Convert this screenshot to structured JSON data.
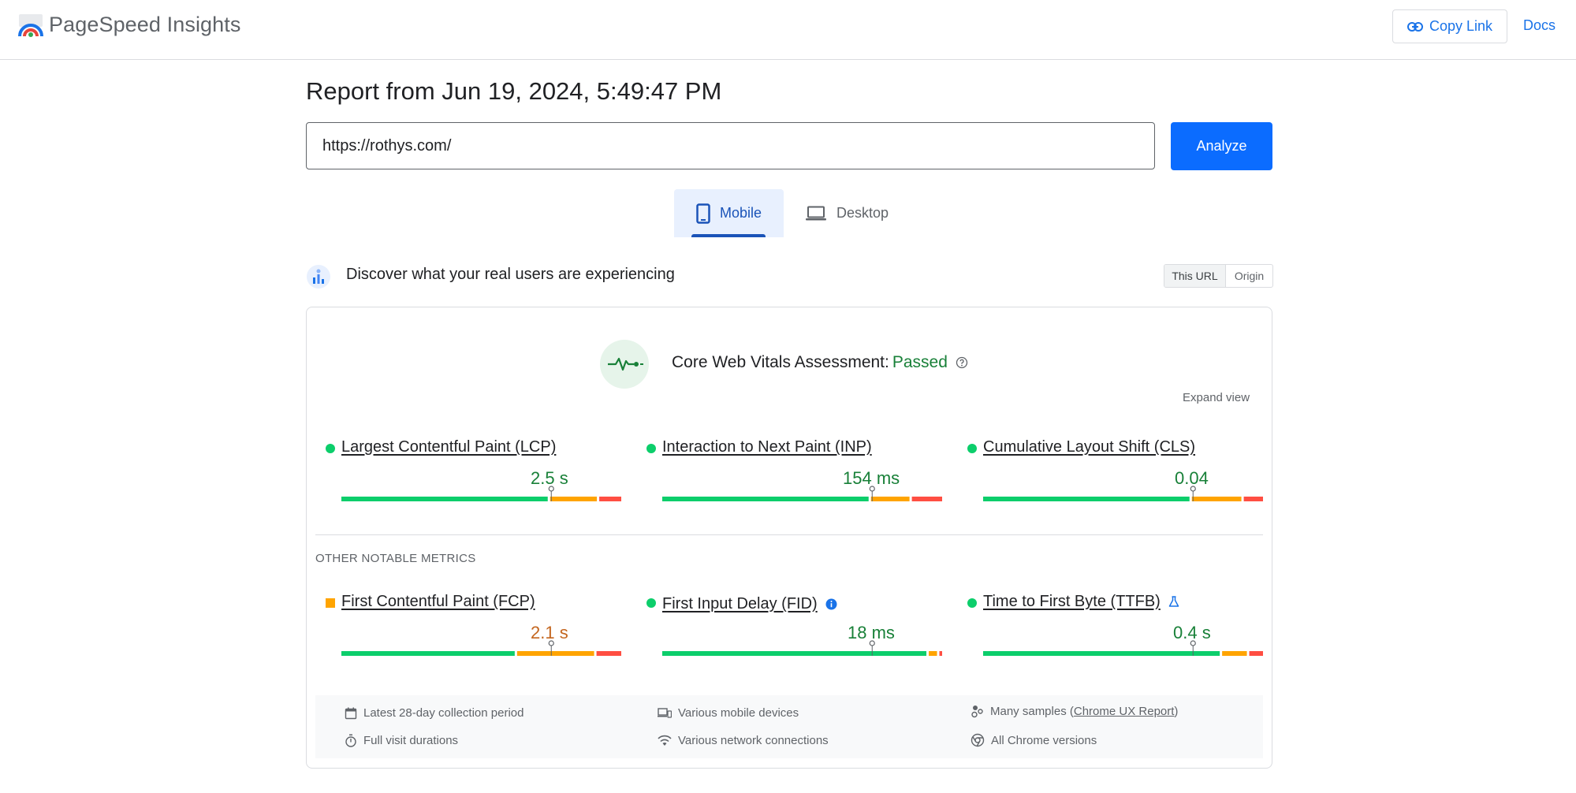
{
  "header": {
    "app_title": "PageSpeed Insights",
    "copy_link_label": "Copy Link",
    "docs_label": "Docs"
  },
  "report": {
    "title": "Report from Jun 19, 2024, 5:49:47 PM",
    "url_value": "https://rothys.com/",
    "analyze_label": "Analyze"
  },
  "tabs": {
    "mobile_label": "Mobile",
    "desktop_label": "Desktop",
    "selected": "Mobile"
  },
  "field_data": {
    "heading": "Discover what your real users are experiencing",
    "scope_this_url": "This URL",
    "scope_origin": "Origin",
    "assessment_prefix": "Core Web Vitals Assessment:",
    "assessment_result": "Passed",
    "expand_label": "Expand view",
    "other_metrics_label": "OTHER NOTABLE METRICS"
  },
  "metrics": {
    "lcp": {
      "name": "Largest Contentful Paint (LCP)",
      "value": "2.5 s",
      "status": "good",
      "dist": [
        0.75,
        0.17,
        0.08
      ]
    },
    "inp": {
      "name": "Interaction to Next Paint (INP)",
      "value": "154 ms",
      "status": "good",
      "dist": [
        0.75,
        0.14,
        0.11
      ]
    },
    "cls": {
      "name": "Cumulative Layout Shift (CLS)",
      "value": "0.04",
      "status": "good",
      "dist": [
        0.75,
        0.18,
        0.07
      ]
    },
    "fcp": {
      "name": "First Contentful Paint (FCP)",
      "value": "2.1 s",
      "status": "needs-improvement",
      "dist": [
        0.63,
        0.28,
        0.09
      ]
    },
    "fid": {
      "name": "First Input Delay (FID)",
      "value": "18 ms",
      "status": "good",
      "dist": [
        0.96,
        0.03,
        0.01
      ]
    },
    "ttfb": {
      "name": "Time to First Byte (TTFB)",
      "value": "0.4 s",
      "status": "good",
      "dist": [
        0.86,
        0.09,
        0.05
      ]
    }
  },
  "footer": {
    "collection_period": "Latest 28-day collection period",
    "devices": "Various mobile devices",
    "samples_prefix": "Many samples (",
    "samples_link": "Chrome UX Report",
    "samples_suffix": ")",
    "visit_durations": "Full visit durations",
    "network": "Various network connections",
    "chrome_versions": "All Chrome versions"
  },
  "colors": {
    "accent_blue": "#1a73e8",
    "analyze_blue": "#0b6cff",
    "good": "#0cce6b",
    "good_text": "#188038",
    "average": "#ffa400",
    "average_text": "#c4661f",
    "poor": "#ff4e42"
  },
  "icons": [
    "logo-icon",
    "link-icon",
    "phone-icon",
    "laptop-icon",
    "crux-icon",
    "pulse-icon",
    "help-icon",
    "info-icon",
    "flask-icon",
    "calendar-icon",
    "devices-icon",
    "samples-icon",
    "stopwatch-icon",
    "wifi-icon",
    "chrome-icon"
  ]
}
